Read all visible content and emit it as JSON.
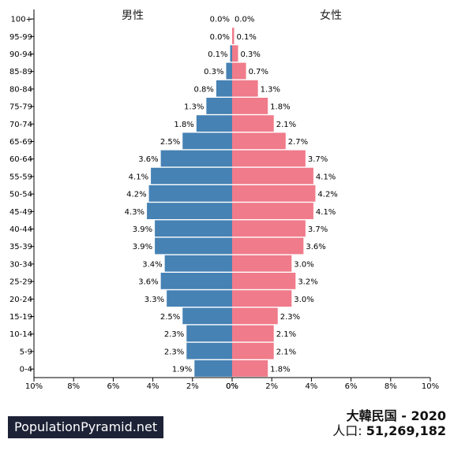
{
  "chart_data": {
    "type": "bar",
    "orientation": "horizontal-pyramid",
    "left_label": "男性",
    "right_label": "女性",
    "categories": [
      "100+",
      "95-99",
      "90-94",
      "85-89",
      "80-84",
      "75-79",
      "70-74",
      "65-69",
      "60-64",
      "55-59",
      "50-54",
      "45-49",
      "40-44",
      "35-39",
      "30-34",
      "25-29",
      "20-24",
      "15-19",
      "10-14",
      "5-9",
      "0-4"
    ],
    "series": [
      {
        "name": "男性",
        "values": [
          0.0,
          0.0,
          0.1,
          0.3,
          0.8,
          1.3,
          1.8,
          2.5,
          3.6,
          4.1,
          4.2,
          4.3,
          3.9,
          3.9,
          3.4,
          3.6,
          3.3,
          2.5,
          2.3,
          2.3,
          1.9
        ]
      },
      {
        "name": "女性",
        "values": [
          0.0,
          0.1,
          0.3,
          0.7,
          1.3,
          1.8,
          2.1,
          2.7,
          3.7,
          4.1,
          4.2,
          4.1,
          3.7,
          3.6,
          3.0,
          3.2,
          3.0,
          2.3,
          2.1,
          2.1,
          1.8
        ]
      }
    ],
    "value_labels_left": [
      "0.0%",
      "0.0%",
      "0.1%",
      "0.3%",
      "0.8%",
      "1.3%",
      "1.8%",
      "2.5%",
      "3.6%",
      "4.1%",
      "4.2%",
      "4.3%",
      "3.9%",
      "3.9%",
      "3.4%",
      "3.6%",
      "3.3%",
      "2.5%",
      "2.3%",
      "2.3%",
      "1.9%"
    ],
    "value_labels_right": [
      "0.0%",
      "0.1%",
      "0.3%",
      "0.7%",
      "1.3%",
      "1.8%",
      "2.1%",
      "2.7%",
      "3.7%",
      "4.1%",
      "4.2%",
      "4.1%",
      "3.7%",
      "3.6%",
      "3.0%",
      "3.2%",
      "3.0%",
      "2.3%",
      "2.1%",
      "2.1%",
      "1.8%"
    ],
    "x_tick_labels_left": [
      "10%",
      "8%",
      "6%",
      "4%",
      "2%",
      "0%"
    ],
    "x_tick_labels_right": [
      "0%",
      "2%",
      "4%",
      "6%",
      "8%",
      "10%"
    ],
    "xlim": [
      0,
      10
    ],
    "colors": {
      "male": "#4682b4",
      "female": "#f07b8a"
    }
  },
  "footer": {
    "brand": "PopulationPyramid.net",
    "title": "大韓民国 - 2020",
    "population_label": "人口:",
    "population_value": "51,269,182"
  }
}
